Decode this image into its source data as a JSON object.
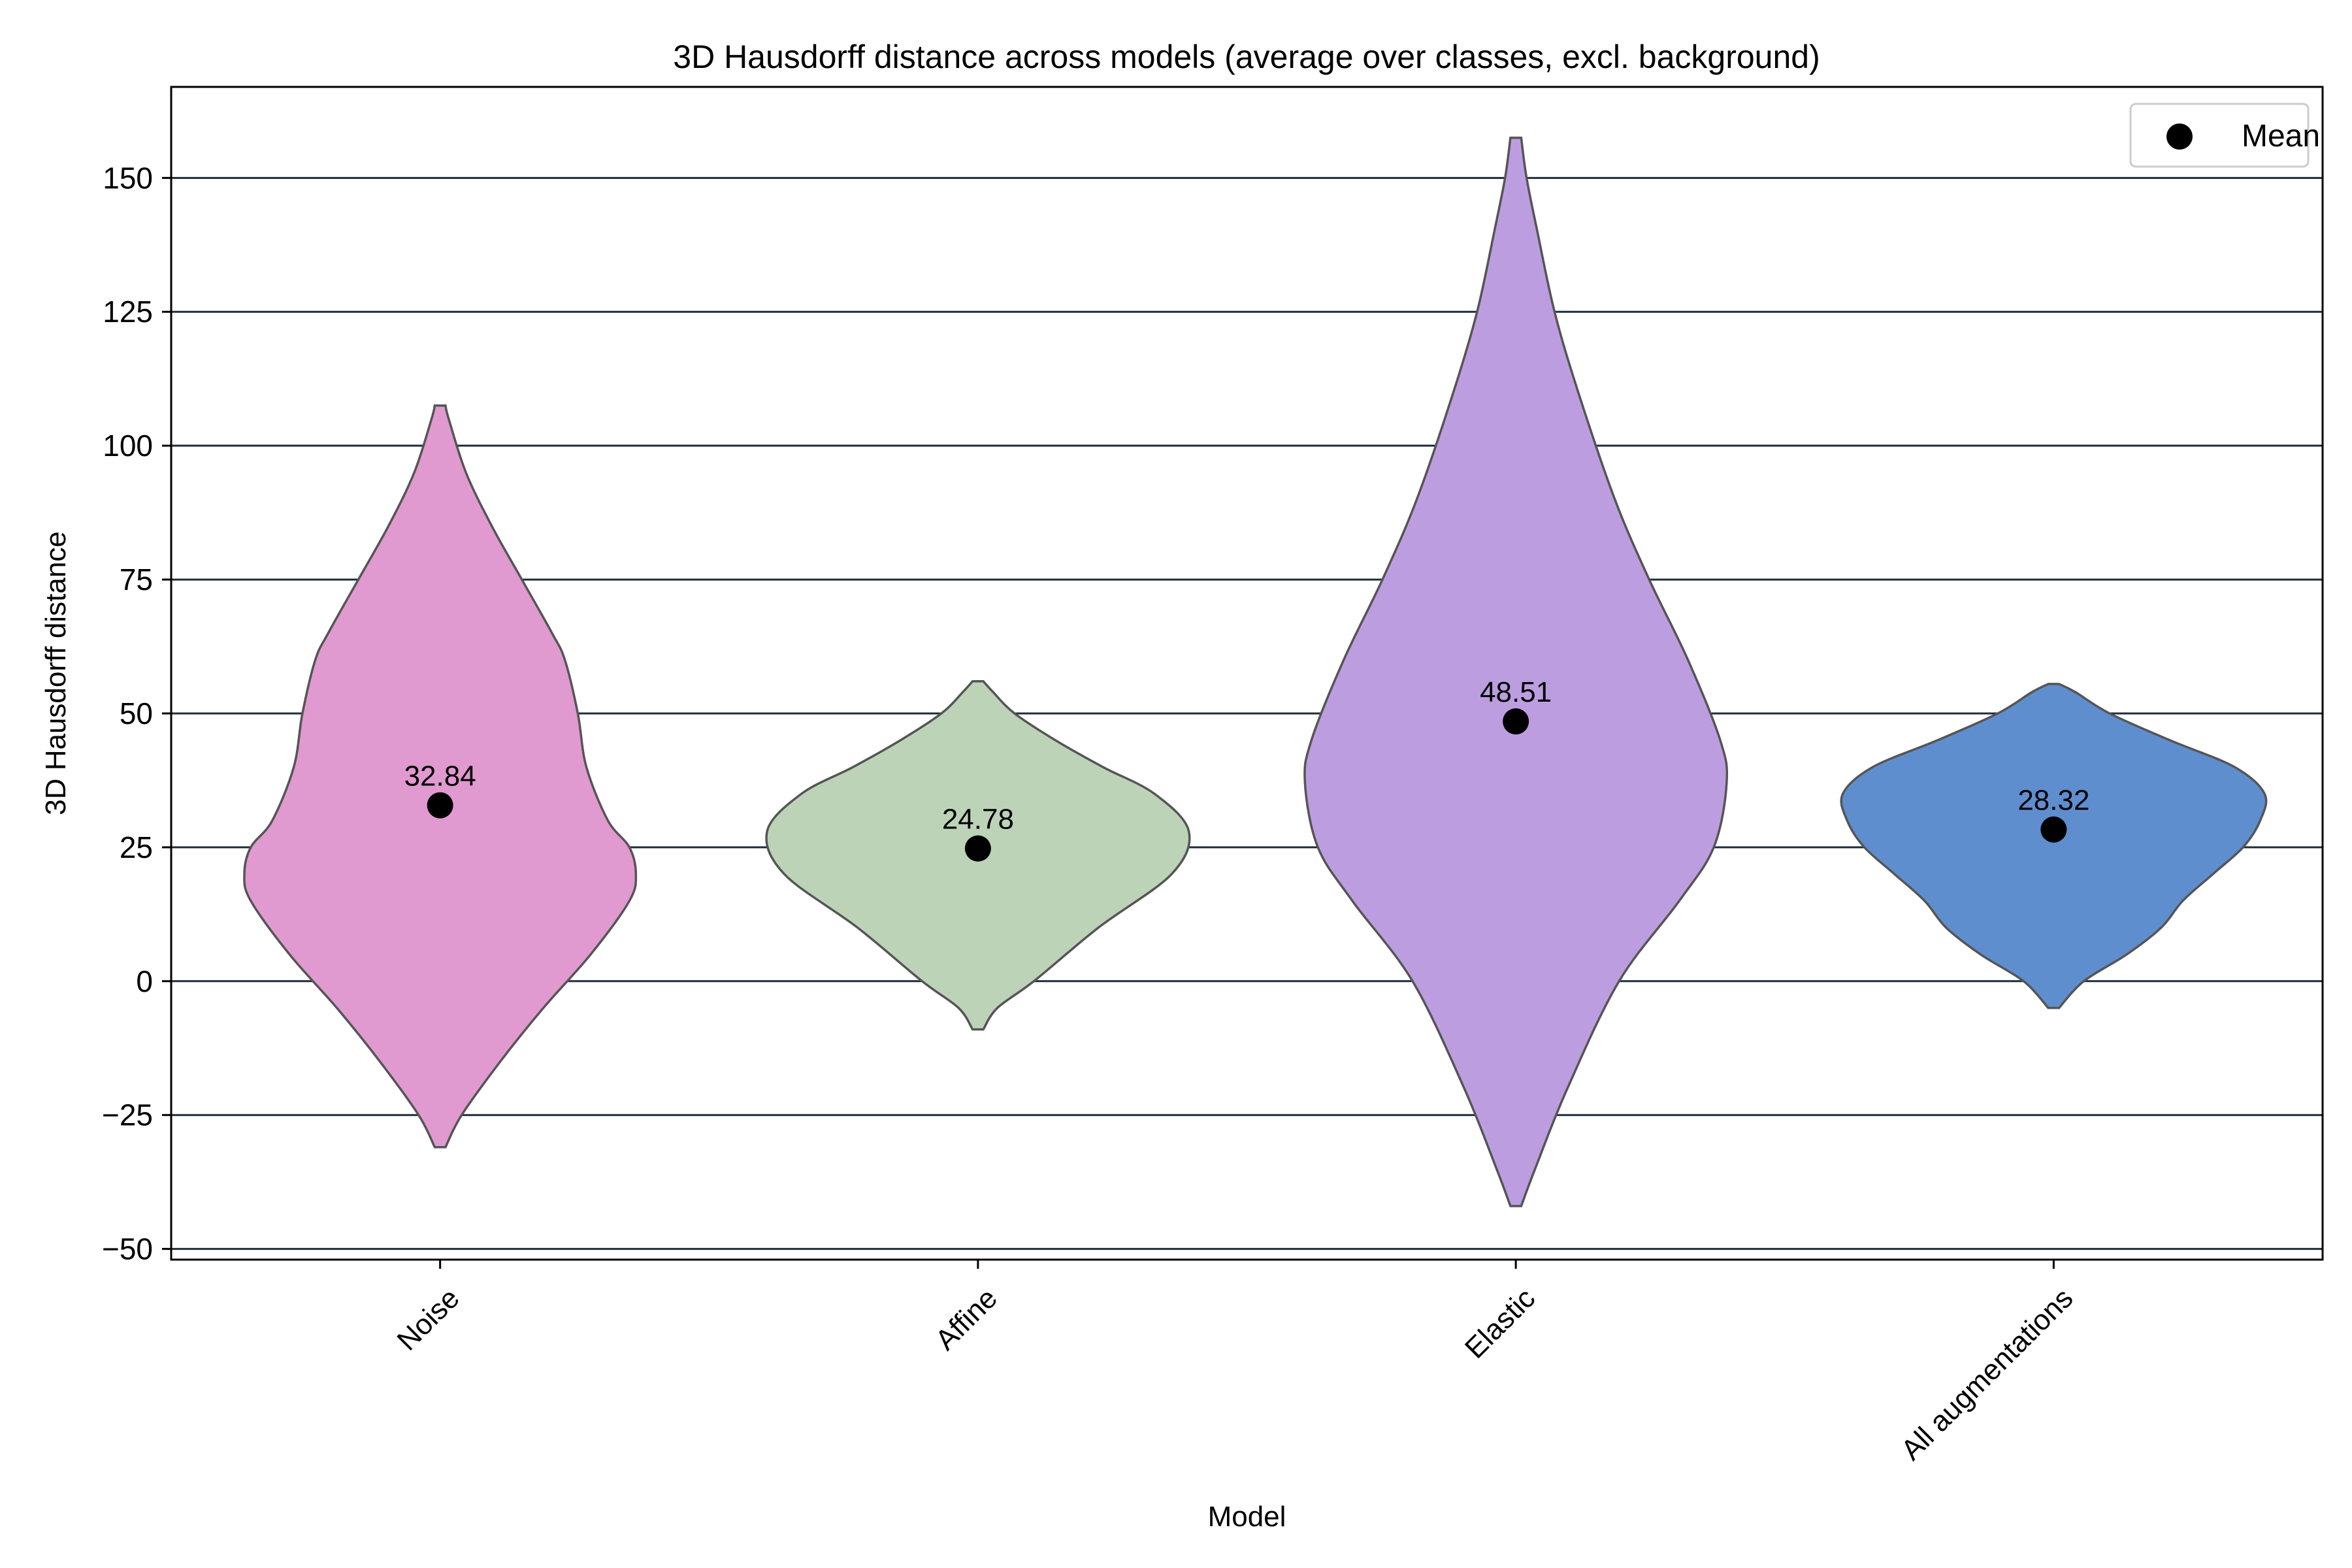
{
  "chart_data": {
    "type": "violin",
    "title": "3D Hausdorff distance across models (average over classes, excl. background)",
    "xlabel": "Model",
    "ylabel": "3D Hausdorff distance",
    "ylim": [
      -52,
      167
    ],
    "yticks": [
      -50,
      -25,
      0,
      25,
      50,
      75,
      100,
      125,
      150
    ],
    "ytick_labels": [
      "−50",
      "−25",
      "0",
      "25",
      "50",
      "75",
      "100",
      "125",
      "150"
    ],
    "grid": true,
    "grid_color": "#1f2d3a",
    "legend": {
      "position": "top-right",
      "entries": [
        {
          "label": "Mean",
          "marker": "circle",
          "color": "#000000"
        }
      ]
    },
    "categories": [
      "Noise",
      "Affine",
      "Elastic",
      "All augmentations"
    ],
    "series": [
      {
        "name": "Noise",
        "color": "#e09acf",
        "mean": 32.84,
        "mean_label": "32.84",
        "profile": [
          [
            -31,
            0.025
          ],
          [
            -25,
            0.1
          ],
          [
            -15,
            0.28
          ],
          [
            -5,
            0.48
          ],
          [
            5,
            0.7
          ],
          [
            15,
            0.88
          ],
          [
            20,
            0.91
          ],
          [
            25,
            0.88
          ],
          [
            30,
            0.78
          ],
          [
            40,
            0.68
          ],
          [
            50,
            0.64
          ],
          [
            60,
            0.58
          ],
          [
            65,
            0.52
          ],
          [
            75,
            0.38
          ],
          [
            85,
            0.24
          ],
          [
            95,
            0.12
          ],
          [
            105,
            0.04
          ],
          [
            107.5,
            0.025
          ]
        ]
      },
      {
        "name": "Affine",
        "color": "#bdd3b8",
        "mean": 24.78,
        "mean_label": "24.78",
        "profile": [
          [
            -9,
            0.025
          ],
          [
            -5,
            0.09
          ],
          [
            0,
            0.26
          ],
          [
            10,
            0.56
          ],
          [
            20,
            0.9
          ],
          [
            28,
            0.98
          ],
          [
            35,
            0.82
          ],
          [
            40,
            0.58
          ],
          [
            45,
            0.36
          ],
          [
            50,
            0.17
          ],
          [
            54,
            0.07
          ],
          [
            56,
            0.025
          ]
        ]
      },
      {
        "name": "Elastic",
        "color": "#bc9ee0",
        "mean": 48.51,
        "mean_label": "48.51",
        "profile": [
          [
            -42,
            0.025
          ],
          [
            -35,
            0.09
          ],
          [
            -20,
            0.24
          ],
          [
            0,
            0.48
          ],
          [
            15,
            0.76
          ],
          [
            25,
            0.92
          ],
          [
            37,
            0.98
          ],
          [
            45,
            0.95
          ],
          [
            60,
            0.8
          ],
          [
            75,
            0.62
          ],
          [
            90,
            0.46
          ],
          [
            110,
            0.29
          ],
          [
            125,
            0.18
          ],
          [
            140,
            0.1
          ],
          [
            150,
            0.05
          ],
          [
            157.5,
            0.025
          ]
        ]
      },
      {
        "name": "All augmentations",
        "color": "#5f8ecf",
        "mean": 28.32,
        "mean_label": "28.32",
        "profile": [
          [
            -5,
            0.025
          ],
          [
            0,
            0.14
          ],
          [
            5,
            0.34
          ],
          [
            10,
            0.5
          ],
          [
            15,
            0.6
          ],
          [
            20,
            0.74
          ],
          [
            25,
            0.88
          ],
          [
            30,
            0.96
          ],
          [
            35,
            0.98
          ],
          [
            40,
            0.84
          ],
          [
            45,
            0.54
          ],
          [
            50,
            0.26
          ],
          [
            54,
            0.1
          ],
          [
            55.5,
            0.025
          ]
        ]
      }
    ]
  }
}
